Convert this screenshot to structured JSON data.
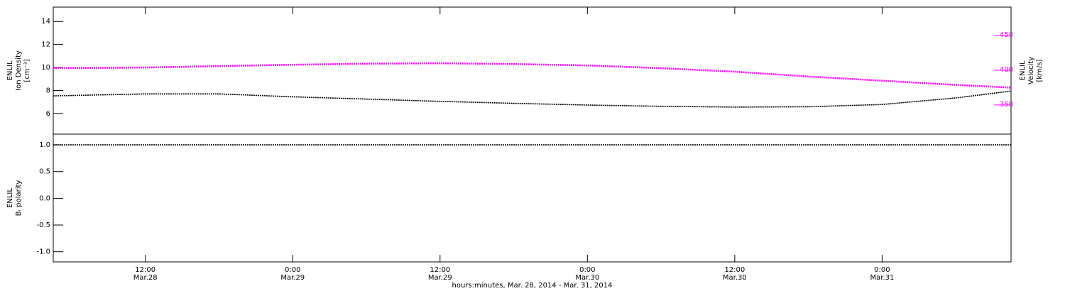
{
  "chart_data": [
    {
      "type": "line",
      "x": [
        "2014-03-28T04:30",
        "2014-03-28T12:00",
        "2014-03-28T18:00",
        "2014-03-29T00:00",
        "2014-03-29T06:00",
        "2014-03-29T12:00",
        "2014-03-29T18:00",
        "2014-03-30T00:00",
        "2014-03-30T06:00",
        "2014-03-30T12:00",
        "2014-03-30T18:00",
        "2014-03-31T00:00",
        "2014-03-31T06:00",
        "2014-03-31T10:30"
      ],
      "xlim": [
        "2014-03-28T04:30",
        "2014-03-31T10:30"
      ],
      "ylabel": [
        "ENLIL",
        "Ion Density",
        "[cm⁻³]"
      ],
      "y2label": [
        "ENLIL",
        "Velocity",
        "[km/s]"
      ],
      "ylim": [
        4.2,
        15.25
      ],
      "yticks": [
        6,
        8,
        10,
        12,
        14
      ],
      "y2lim": [
        308,
        491
      ],
      "y2ticks": [
        350,
        400,
        450
      ],
      "y2color": "#ff00ff",
      "series": [
        {
          "color": "#000000",
          "values": [
            7.53,
            7.7,
            7.7,
            7.45,
            7.25,
            7.05,
            6.88,
            6.73,
            6.62,
            6.55,
            6.58,
            6.78,
            7.35,
            7.95
          ]
        },
        {
          "color": "#ff00ff",
          "axis": "y2",
          "values": [
            403,
            404,
            406,
            408,
            409.5,
            410,
            409,
            407,
            403,
            398,
            391,
            385,
            379,
            375
          ]
        }
      ]
    },
    {
      "type": "line",
      "x": [
        "2014-03-28T04:30",
        "2014-03-28T12:00",
        "2014-03-28T18:00",
        "2014-03-29T00:00",
        "2014-03-29T06:00",
        "2014-03-29T12:00",
        "2014-03-29T18:00",
        "2014-03-30T00:00",
        "2014-03-30T06:00",
        "2014-03-30T12:00",
        "2014-03-30T18:00",
        "2014-03-31T00:00",
        "2014-03-31T06:00",
        "2014-03-31T10:30"
      ],
      "xlim": [
        "2014-03-28T04:30",
        "2014-03-31T10:30"
      ],
      "ylabel": [
        "ENLIL",
        "Bᵣ polarity"
      ],
      "ylim": [
        -1.19,
        1.2
      ],
      "yticks": [
        {
          "value": 1,
          "label": "1.0"
        },
        {
          "value": 0.5,
          "label": "0.5"
        },
        {
          "value": 0,
          "label": "0.0"
        },
        {
          "value": -0.5,
          "label": "-0.5"
        },
        {
          "value": -1,
          "label": "-1.0"
        }
      ],
      "xticks": [
        {
          "value": "2014-03-28T12:00",
          "label": [
            "12:00",
            "Mar.28"
          ]
        },
        {
          "value": "2014-03-29T00:00",
          "label": [
            "0:00",
            "Mar.29"
          ]
        },
        {
          "value": "2014-03-29T12:00",
          "label": [
            "12:00",
            "Mar.29"
          ]
        },
        {
          "value": "2014-03-30T00:00",
          "label": [
            "0:00",
            "Mar.30"
          ]
        },
        {
          "value": "2014-03-30T12:00",
          "label": [
            "12:00",
            "Mar.30"
          ]
        },
        {
          "value": "2014-03-31T00:00",
          "label": [
            "0:00",
            "Mar.31"
          ]
        }
      ],
      "xlabel": "hours:minutes, Mar. 28, 2014 - Mar. 31, 2014",
      "series": [
        {
          "color": "#000000",
          "values": [
            1,
            1,
            1,
            1,
            1,
            1,
            1,
            1,
            1,
            1,
            1,
            1,
            1,
            1
          ]
        }
      ]
    }
  ]
}
